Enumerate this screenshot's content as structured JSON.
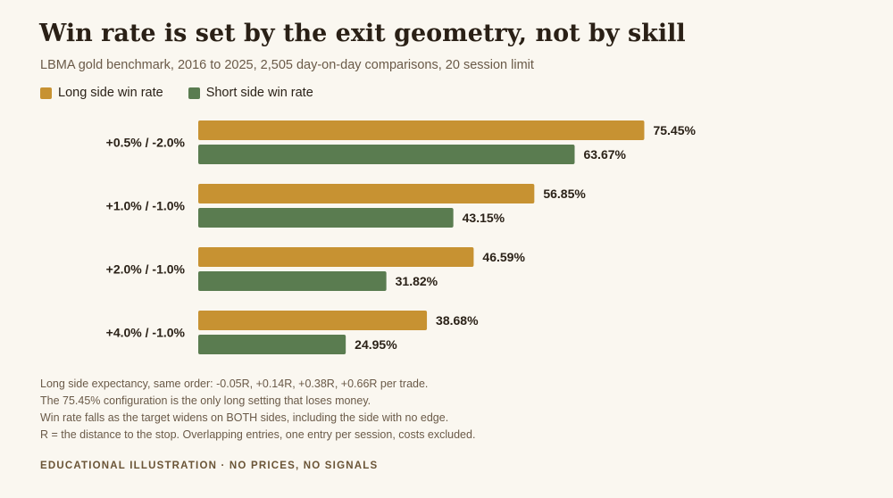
{
  "header": {
    "title": "Win rate is set by the exit geometry, not by skill",
    "subtitle": "LBMA gold benchmark, 2016 to 2025, 2,505 day-on-day comparisons, 20 session limit"
  },
  "legend": [
    {
      "label": "Long side win rate",
      "color": "#c79232"
    },
    {
      "label": "Short side win rate",
      "color": "#5a7c50"
    }
  ],
  "chart_data": {
    "type": "bar",
    "orientation": "horizontal",
    "categories": [
      "+0.5% / -2.0%",
      "+1.0% / -1.0%",
      "+2.0% / -1.0%",
      "+4.0% / -1.0%"
    ],
    "series": [
      {
        "name": "Long side win rate",
        "color": "#c79232",
        "values": [
          75.45,
          56.85,
          46.59,
          38.68
        ]
      },
      {
        "name": "Short side win rate",
        "color": "#5a7c50",
        "values": [
          63.67,
          43.15,
          31.82,
          24.95
        ]
      }
    ],
    "value_suffix": "%",
    "xlim": [
      0,
      100
    ],
    "grid": false,
    "legend_position": "top-left"
  },
  "notes": [
    "Long side expectancy, same order: -0.05R, +0.14R, +0.38R, +0.66R per trade.",
    "The 75.45% configuration is the only long setting that loses money.",
    "Win rate falls as the target widens on BOTH sides, including the side with no edge.",
    "R = the distance to the stop. Overlapping entries, one entry per session, costs excluded."
  ],
  "footer": "EDUCATIONAL ILLUSTRATION · NO PRICES, NO SIGNALS"
}
